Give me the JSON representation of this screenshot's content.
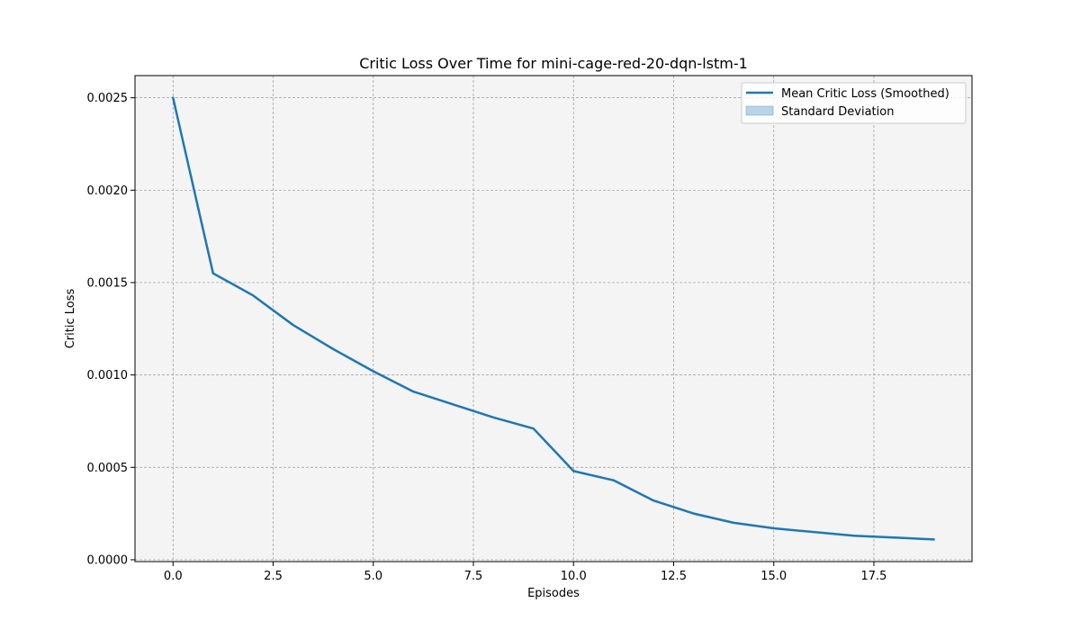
{
  "chart_data": {
    "type": "line",
    "title": "Critic Loss Over Time for mini-cage-red-20-dqn-lstm-1",
    "xlabel": "Episodes",
    "ylabel": "Critic Loss",
    "xlim": [
      -0.95,
      19.95
    ],
    "ylim": [
      -1e-05,
      0.00262
    ],
    "xticks": [
      0,
      2.5,
      5,
      7.5,
      10,
      12.5,
      15,
      17.5
    ],
    "xtick_labels": [
      "0.0",
      "2.5",
      "5.0",
      "7.5",
      "10.0",
      "12.5",
      "15.0",
      "17.5"
    ],
    "yticks": [
      0,
      0.0005,
      0.001,
      0.0015,
      0.002,
      0.0025
    ],
    "ytick_labels": [
      "0.0000",
      "0.0005",
      "0.0010",
      "0.0015",
      "0.0020",
      "0.0025"
    ],
    "grid": true,
    "legend_position": "top-right",
    "series": [
      {
        "name": "Mean Critic Loss (Smoothed)",
        "x": [
          0,
          1,
          2,
          3,
          4,
          5,
          6,
          7,
          8,
          9,
          10,
          11,
          12,
          13,
          14,
          15,
          16,
          17,
          18,
          19
        ],
        "values": [
          0.0025,
          0.00155,
          0.00143,
          0.00127,
          0.00114,
          0.00102,
          0.00091,
          0.00084,
          0.00077,
          0.00071,
          0.00048,
          0.00043,
          0.00032,
          0.00025,
          0.0002,
          0.00017,
          0.00015,
          0.00013,
          0.00012,
          0.00011
        ],
        "color": "#1f77b4"
      }
    ],
    "band": {
      "name": "Standard Deviation",
      "color": "#1f77b4",
      "opacity": 0.3
    },
    "colors": {
      "plot_background": "#f4f4f4",
      "grid": "#999999"
    }
  }
}
